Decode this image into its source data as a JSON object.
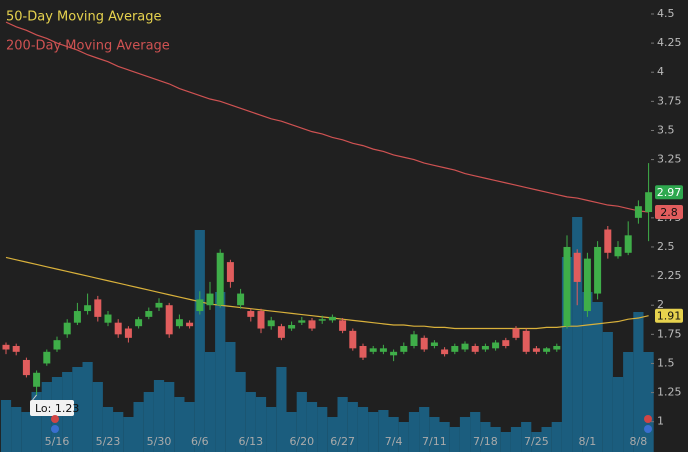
{
  "chart_data": {
    "type": "candlestick",
    "categories": [
      null,
      null,
      null,
      null,
      null,
      "5/16",
      null,
      null,
      null,
      null,
      "5/23",
      null,
      null,
      null,
      null,
      "5/30",
      null,
      null,
      null,
      "6/6",
      null,
      null,
      null,
      null,
      "6/13",
      null,
      null,
      null,
      null,
      "6/20",
      null,
      null,
      null,
      "6/27",
      null,
      null,
      null,
      null,
      "7/4",
      null,
      null,
      null,
      "7/11",
      null,
      null,
      null,
      null,
      "7/18",
      null,
      null,
      null,
      null,
      "7/25",
      null,
      null,
      null,
      null,
      "8/1",
      null,
      null,
      null,
      null,
      "8/8",
      null
    ],
    "open": [
      1.66,
      1.65,
      1.53,
      1.3,
      1.5,
      1.62,
      1.75,
      1.85,
      1.95,
      2.05,
      1.85,
      1.85,
      1.8,
      1.82,
      1.9,
      1.98,
      2.0,
      1.82,
      1.85,
      1.95,
      2.0,
      2.0,
      2.37,
      2.0,
      1.95,
      1.95,
      1.82,
      1.82,
      1.8,
      1.85,
      1.87,
      1.87,
      1.87,
      1.87,
      1.78,
      1.65,
      1.6,
      1.6,
      1.57,
      1.6,
      1.65,
      1.72,
      1.65,
      1.62,
      1.6,
      1.62,
      1.65,
      1.62,
      1.63,
      1.7,
      1.8,
      1.78,
      1.63,
      1.6,
      1.62,
      1.82,
      2.45,
      1.95,
      2.1,
      2.65,
      2.42,
      2.45,
      2.75,
      2.8
    ],
    "high": [
      1.68,
      1.67,
      1.55,
      1.44,
      1.62,
      1.73,
      1.88,
      2.02,
      2.1,
      2.08,
      1.95,
      1.88,
      1.82,
      1.9,
      1.98,
      2.06,
      2.02,
      1.92,
      1.87,
      2.12,
      2.2,
      2.48,
      2.39,
      2.14,
      1.97,
      1.97,
      1.9,
      1.84,
      1.86,
      1.9,
      1.89,
      1.91,
      1.92,
      1.89,
      1.8,
      1.67,
      1.65,
      1.66,
      1.62,
      1.68,
      1.78,
      1.74,
      1.7,
      1.64,
      1.67,
      1.69,
      1.67,
      1.67,
      1.7,
      1.72,
      1.82,
      1.8,
      1.65,
      1.64,
      1.67,
      2.6,
      2.48,
      2.45,
      2.55,
      2.68,
      2.55,
      2.72,
      2.9,
      3.22
    ],
    "low": [
      1.58,
      1.57,
      1.38,
      1.23,
      1.48,
      1.6,
      1.72,
      1.83,
      1.92,
      1.86,
      1.82,
      1.72,
      1.68,
      1.8,
      1.88,
      1.95,
      1.72,
      1.8,
      1.8,
      1.92,
      1.96,
      1.98,
      2.15,
      1.97,
      1.86,
      1.76,
      1.79,
      1.7,
      1.78,
      1.83,
      1.78,
      1.84,
      1.85,
      1.76,
      1.61,
      1.53,
      1.58,
      1.58,
      1.52,
      1.58,
      1.63,
      1.6,
      1.63,
      1.56,
      1.58,
      1.6,
      1.58,
      1.6,
      1.61,
      1.63,
      1.7,
      1.58,
      1.58,
      1.58,
      1.6,
      1.8,
      2.0,
      1.9,
      2.05,
      2.4,
      2.4,
      2.43,
      2.7,
      2.55
    ],
    "close": [
      1.62,
      1.6,
      1.4,
      1.42,
      1.6,
      1.7,
      1.85,
      1.95,
      2.0,
      1.9,
      1.92,
      1.75,
      1.72,
      1.88,
      1.95,
      2.02,
      1.75,
      1.88,
      1.82,
      2.05,
      2.1,
      2.45,
      2.2,
      2.1,
      1.9,
      1.8,
      1.87,
      1.72,
      1.83,
      1.87,
      1.8,
      1.88,
      1.9,
      1.78,
      1.63,
      1.55,
      1.63,
      1.63,
      1.6,
      1.65,
      1.75,
      1.62,
      1.68,
      1.58,
      1.65,
      1.67,
      1.6,
      1.65,
      1.68,
      1.65,
      1.72,
      1.6,
      1.6,
      1.63,
      1.65,
      2.5,
      2.2,
      2.4,
      2.5,
      2.45,
      2.5,
      2.6,
      2.85,
      2.97
    ],
    "volume": [
      52,
      45,
      40,
      60,
      70,
      75,
      80,
      85,
      90,
      70,
      45,
      40,
      35,
      50,
      60,
      72,
      70,
      55,
      50,
      222,
      100,
      160,
      110,
      80,
      60,
      55,
      45,
      85,
      40,
      60,
      50,
      45,
      35,
      55,
      50,
      45,
      40,
      42,
      35,
      30,
      40,
      45,
      35,
      30,
      25,
      35,
      40,
      30,
      25,
      20,
      25,
      30,
      20,
      25,
      30,
      195,
      235,
      160,
      150,
      120,
      75,
      100,
      140,
      100
    ],
    "vlim": [
      0,
      452
    ],
    "up_color": "#3fae49",
    "down_color": "#e15d5d",
    "volume_color": "#1b5d7e",
    "low_label": "Lo:",
    "ylim": [
      0.74,
      4.62
    ],
    "yticks": [
      1,
      1.25,
      1.5,
      1.75,
      2,
      2.25,
      2.5,
      2.75,
      3.25,
      3.5,
      3.75,
      4,
      4.25,
      4.5
    ],
    "series": [
      {
        "name": "50-Day Moving Average",
        "color": "#d9b13b",
        "values": [
          2.41,
          2.39,
          2.37,
          2.35,
          2.33,
          2.31,
          2.29,
          2.27,
          2.25,
          2.23,
          2.21,
          2.19,
          2.17,
          2.15,
          2.13,
          2.11,
          2.09,
          2.07,
          2.05,
          2.03,
          2.01,
          2.0,
          1.99,
          1.98,
          1.97,
          1.96,
          1.95,
          1.94,
          1.93,
          1.92,
          1.91,
          1.9,
          1.89,
          1.88,
          1.87,
          1.86,
          1.85,
          1.84,
          1.83,
          1.83,
          1.82,
          1.82,
          1.81,
          1.81,
          1.8,
          1.8,
          1.8,
          1.8,
          1.8,
          1.8,
          1.8,
          1.8,
          1.8,
          1.81,
          1.81,
          1.82,
          1.82,
          1.83,
          1.84,
          1.85,
          1.86,
          1.88,
          1.89,
          1.91
        ]
      },
      {
        "name": "200-Day Moving Average",
        "color": "#cf5252",
        "values": [
          4.43,
          4.39,
          4.36,
          4.32,
          4.29,
          4.25,
          4.22,
          4.19,
          4.15,
          4.12,
          4.09,
          4.05,
          4.02,
          3.99,
          3.96,
          3.93,
          3.9,
          3.86,
          3.83,
          3.8,
          3.77,
          3.75,
          3.72,
          3.69,
          3.66,
          3.63,
          3.6,
          3.58,
          3.55,
          3.52,
          3.49,
          3.47,
          3.44,
          3.42,
          3.39,
          3.37,
          3.34,
          3.32,
          3.29,
          3.27,
          3.25,
          3.22,
          3.2,
          3.18,
          3.16,
          3.13,
          3.11,
          3.09,
          3.07,
          3.05,
          3.03,
          3.01,
          2.99,
          2.97,
          2.95,
          2.93,
          2.92,
          2.9,
          2.88,
          2.86,
          2.85,
          2.83,
          2.81,
          2.8
        ]
      }
    ]
  }
}
